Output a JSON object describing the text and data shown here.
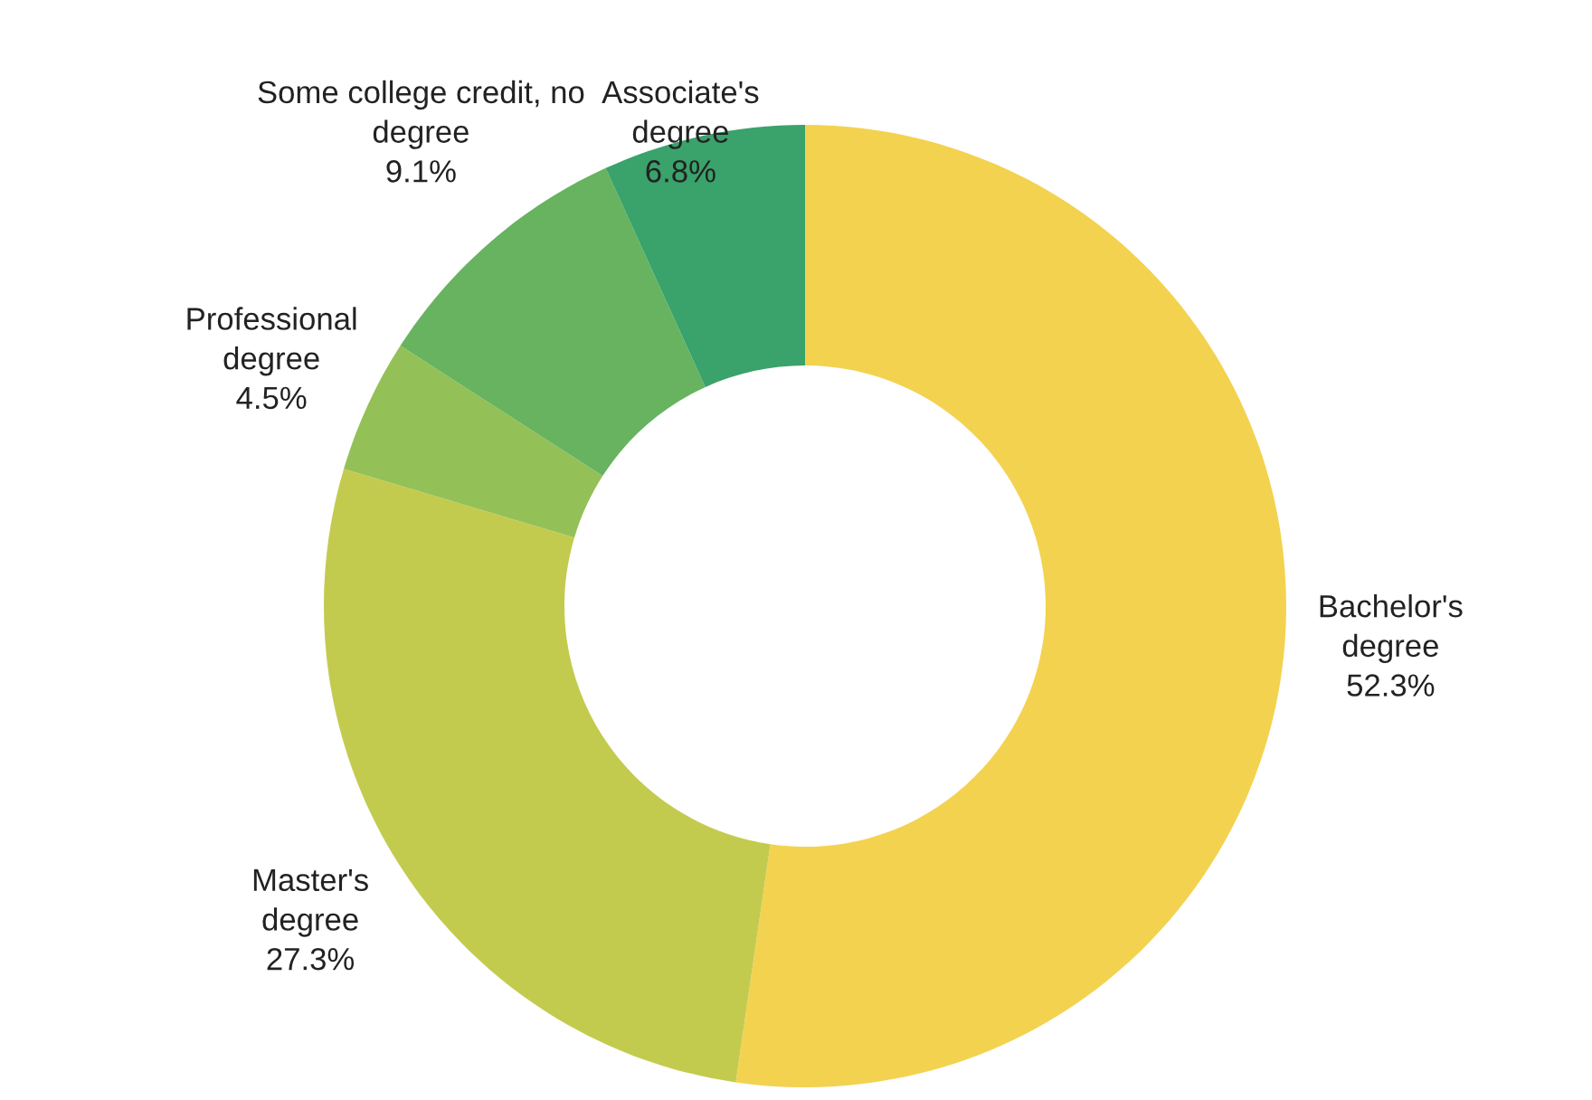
{
  "chart_data": {
    "type": "donut",
    "categories": [
      "Bachelor's\ndegree",
      "Master's\ndegree",
      "Professional\ndegree",
      "Some college credit, no\ndegree",
      "Associate's\ndegree"
    ],
    "values": [
      52.3,
      27.3,
      4.5,
      9.1,
      6.8
    ],
    "colors": [
      "#f3d250",
      "#c3cb4f",
      "#93c057",
      "#67b35f",
      "#3aa26b"
    ],
    "value_labels": [
      "52.3%",
      "27.3%",
      "4.5%",
      "9.1%",
      "6.8%"
    ],
    "legend": false
  }
}
